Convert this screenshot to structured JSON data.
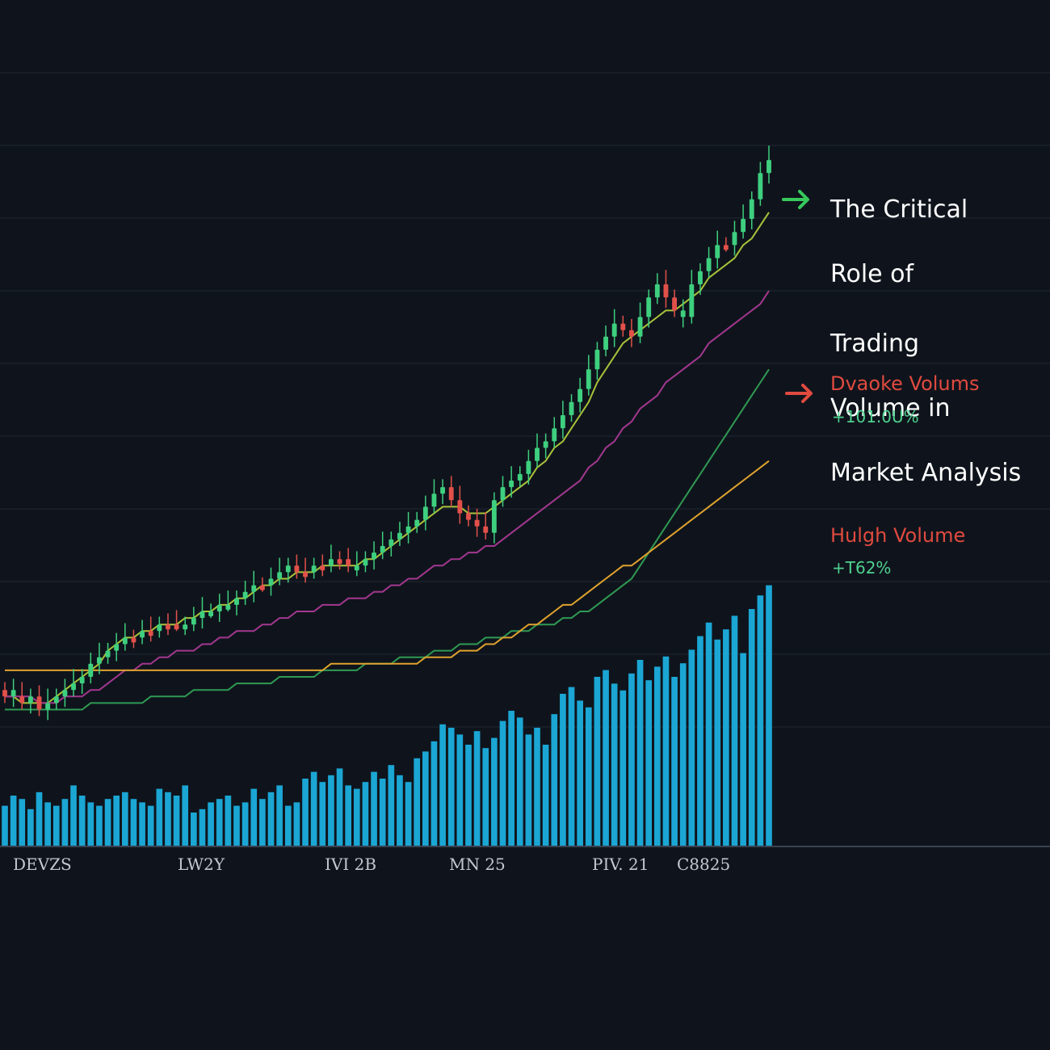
{
  "chart_data": {
    "type": "candlestick+bar+line",
    "title": "The Critical Role of Trading Volume in Market Analysis",
    "title_lines": [
      "The Critical",
      "Role of",
      "Trading",
      "Volume in",
      "Market Analysis"
    ],
    "xlabel": "",
    "ylabel": "",
    "x_tick_labels": [
      "DEVZS",
      "LW2Y",
      "IVI 2B",
      "MN 25",
      "PIV. 21",
      "C8825"
    ],
    "grid": true,
    "legend": "none",
    "annotations": [
      {
        "label": "Dvaoke  Volums",
        "value": "+101.0U%",
        "arrow": "green",
        "label_color": "#e04a3f",
        "value_color": "#4fd18f"
      },
      {
        "label": "Hulgh Volume",
        "value": "+T62%",
        "arrow": "red",
        "label_color": "#e04a3f",
        "value_color": "#4fd18f"
      }
    ],
    "price_range": [
      0,
      100
    ],
    "volume_range": [
      0,
      100
    ],
    "price_close": [
      18,
      17,
      16,
      17,
      15,
      16,
      17,
      18,
      19,
      20,
      22,
      23,
      24,
      25,
      26,
      26,
      27,
      27,
      28,
      28,
      28,
      28,
      29,
      30,
      30,
      31,
      31,
      32,
      33,
      34,
      34,
      35,
      36,
      37,
      36,
      36,
      37,
      37,
      38,
      38,
      37,
      37,
      38,
      39,
      40,
      41,
      42,
      43,
      44,
      46,
      48,
      49,
      47,
      45,
      44,
      43,
      42,
      47,
      49,
      50,
      51,
      53,
      55,
      56,
      58,
      60,
      62,
      64,
      67,
      70,
      72,
      74,
      73,
      72,
      75,
      78,
      80,
      78,
      76,
      75,
      80,
      82,
      84,
      86,
      86,
      88,
      90,
      93,
      97,
      99
    ],
    "candle_colors": [
      "r",
      "g",
      "r",
      "g",
      "r",
      "g",
      "g",
      "g",
      "g",
      "g",
      "g",
      "g",
      "g",
      "g",
      "g",
      "r",
      "g",
      "r",
      "g",
      "r",
      "r",
      "g",
      "g",
      "g",
      "g",
      "g",
      "g",
      "g",
      "g",
      "g",
      "r",
      "g",
      "g",
      "g",
      "r",
      "r",
      "g",
      "r",
      "g",
      "r",
      "r",
      "g",
      "g",
      "g",
      "g",
      "g",
      "g",
      "g",
      "g",
      "g",
      "g",
      "g",
      "r",
      "r",
      "r",
      "r",
      "r",
      "g",
      "g",
      "g",
      "g",
      "g",
      "g",
      "g",
      "g",
      "g",
      "g",
      "g",
      "g",
      "g",
      "g",
      "g",
      "r",
      "r",
      "g",
      "g",
      "g",
      "r",
      "r",
      "g",
      "g",
      "g",
      "g",
      "g",
      "r",
      "g",
      "g",
      "g",
      "g",
      "g"
    ],
    "volume": [
      12,
      15,
      14,
      11,
      16,
      13,
      12,
      14,
      18,
      15,
      13,
      12,
      14,
      15,
      16,
      14,
      13,
      12,
      17,
      16,
      15,
      18,
      10,
      11,
      13,
      14,
      15,
      12,
      13,
      17,
      14,
      16,
      18,
      12,
      13,
      20,
      22,
      19,
      21,
      23,
      18,
      17,
      19,
      22,
      20,
      24,
      21,
      19,
      26,
      28,
      31,
      36,
      35,
      33,
      30,
      34,
      29,
      32,
      37,
      40,
      38,
      33,
      35,
      30,
      39,
      45,
      47,
      43,
      41,
      50,
      52,
      48,
      46,
      51,
      55,
      49,
      53,
      56,
      50,
      54,
      58,
      62,
      66,
      61,
      64,
      68,
      57,
      70,
      74,
      77
    ],
    "series": [
      {
        "values": [
          17,
          17,
          16,
          16,
          16,
          16,
          17,
          18,
          19,
          20,
          21,
          22,
          24,
          25,
          26,
          26,
          27,
          27,
          28,
          28,
          28,
          29,
          29,
          30,
          30,
          31,
          31,
          32,
          32,
          33,
          34,
          34,
          35,
          35,
          36,
          36,
          36,
          37,
          37,
          37,
          37,
          37,
          38,
          38,
          39,
          40,
          41,
          42,
          43,
          44,
          45,
          46,
          46,
          46,
          45,
          45,
          45,
          46,
          47,
          48,
          49,
          50,
          52,
          53,
          55,
          56,
          58,
          60,
          62,
          65,
          67,
          69,
          71,
          72,
          73,
          74,
          75,
          76,
          76,
          77,
          78,
          79,
          81,
          82,
          83,
          84,
          86,
          87,
          89,
          91
        ],
        "color": "#a9c23a"
      },
      {
        "values": [
          17,
          17,
          17,
          17,
          16,
          16,
          16,
          17,
          17,
          17,
          18,
          18,
          19,
          20,
          21,
          21,
          22,
          22,
          23,
          23,
          24,
          24,
          24,
          25,
          25,
          26,
          26,
          27,
          27,
          27,
          28,
          28,
          29,
          29,
          30,
          30,
          30,
          31,
          31,
          31,
          32,
          32,
          32,
          33,
          33,
          34,
          34,
          35,
          35,
          36,
          37,
          37,
          38,
          38,
          39,
          39,
          40,
          40,
          41,
          42,
          43,
          44,
          45,
          46,
          47,
          48,
          49,
          50,
          52,
          53,
          55,
          56,
          58,
          59,
          61,
          62,
          63,
          65,
          66,
          67,
          68,
          69,
          71,
          72,
          73,
          74,
          75,
          76,
          77,
          79
        ],
        "color": "#a3378f"
      },
      {
        "values": [
          15,
          15,
          15,
          15,
          15,
          15,
          15,
          15,
          15,
          15,
          16,
          16,
          16,
          16,
          16,
          16,
          16,
          17,
          17,
          17,
          17,
          17,
          18,
          18,
          18,
          18,
          18,
          19,
          19,
          19,
          19,
          19,
          20,
          20,
          20,
          20,
          20,
          21,
          21,
          21,
          21,
          21,
          22,
          22,
          22,
          22,
          23,
          23,
          23,
          23,
          24,
          24,
          24,
          25,
          25,
          25,
          26,
          26,
          26,
          27,
          27,
          27,
          28,
          28,
          28,
          29,
          29,
          30,
          30,
          31,
          32,
          33,
          34,
          35,
          37,
          39,
          41,
          43,
          45,
          47,
          49,
          51,
          53,
          55,
          57,
          59,
          61,
          63,
          65,
          67
        ],
        "color": "#2f9a53"
      },
      {
        "values": [
          21,
          21,
          21,
          21,
          21,
          21,
          21,
          21,
          21,
          21,
          21,
          21,
          21,
          21,
          21,
          21,
          21,
          21,
          21,
          21,
          21,
          21,
          21,
          21,
          21,
          21,
          21,
          21,
          21,
          21,
          21,
          21,
          21,
          21,
          21,
          21,
          21,
          21,
          22,
          22,
          22,
          22,
          22,
          22,
          22,
          22,
          22,
          22,
          22,
          23,
          23,
          23,
          23,
          24,
          24,
          24,
          25,
          25,
          26,
          26,
          27,
          28,
          28,
          29,
          30,
          31,
          31,
          32,
          33,
          34,
          35,
          36,
          37,
          37,
          38,
          39,
          40,
          41,
          42,
          43,
          44,
          45,
          46,
          47,
          48,
          49,
          50,
          51,
          52,
          53
        ],
        "color": "#e0a22e"
      }
    ]
  },
  "style": {
    "background": "#0f141c",
    "grid_color": "#1f2733",
    "candle_up": "#3ecf7f",
    "candle_down": "#e2504a",
    "volume_bar": "#1ba6d4",
    "arrow_green": "#36c95b",
    "arrow_red": "#e04a3f"
  }
}
